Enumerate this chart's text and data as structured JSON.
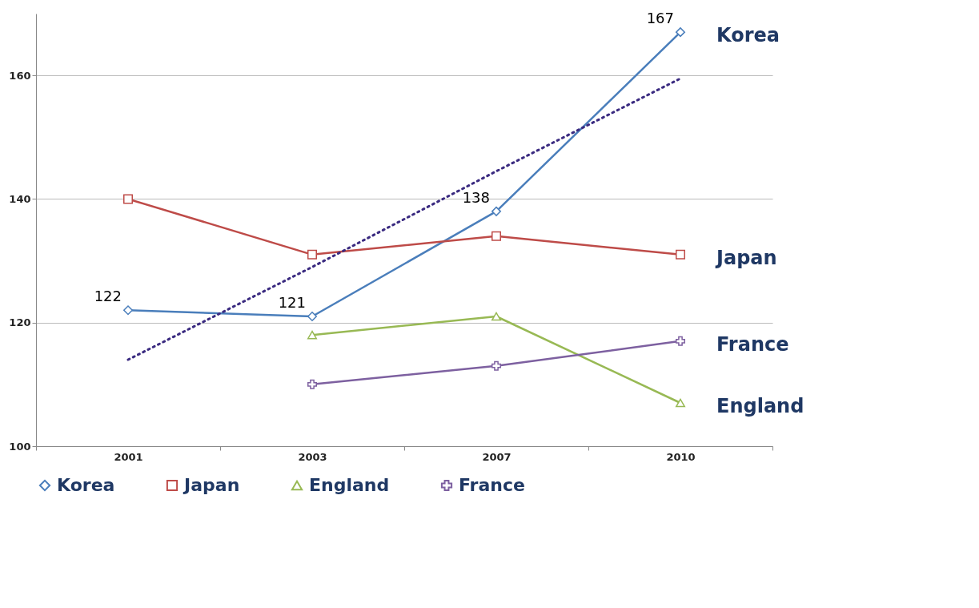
{
  "chart_data": {
    "type": "line",
    "categories": [
      "2001",
      "2003",
      "2007",
      "2010"
    ],
    "series": [
      {
        "name": "Korea",
        "color": "#4a7ebb",
        "marker": "diamond",
        "values": [
          122,
          121,
          138,
          167
        ],
        "value_labels": [
          "122",
          "121",
          "138",
          "167"
        ]
      },
      {
        "name": "Japan",
        "color": "#be4b48",
        "marker": "square",
        "values": [
          140,
          131,
          134,
          131
        ]
      },
      {
        "name": "England",
        "color": "#98b954",
        "marker": "triangle",
        "values": [
          null,
          118,
          121,
          107
        ]
      },
      {
        "name": "France",
        "color": "#7d60a0",
        "marker": "cross",
        "values": [
          null,
          110,
          113,
          117
        ]
      },
      {
        "type": "line",
        "color": "#3a2a80",
        "line_style": "dotted",
        "marker": "none",
        "values": [
          114,
          129,
          144.5,
          159.5
        ]
      }
    ],
    "ylim": [
      100,
      170
    ],
    "yticks": [
      100,
      120,
      140,
      160
    ],
    "grid": "y",
    "legend": "bottom"
  }
}
